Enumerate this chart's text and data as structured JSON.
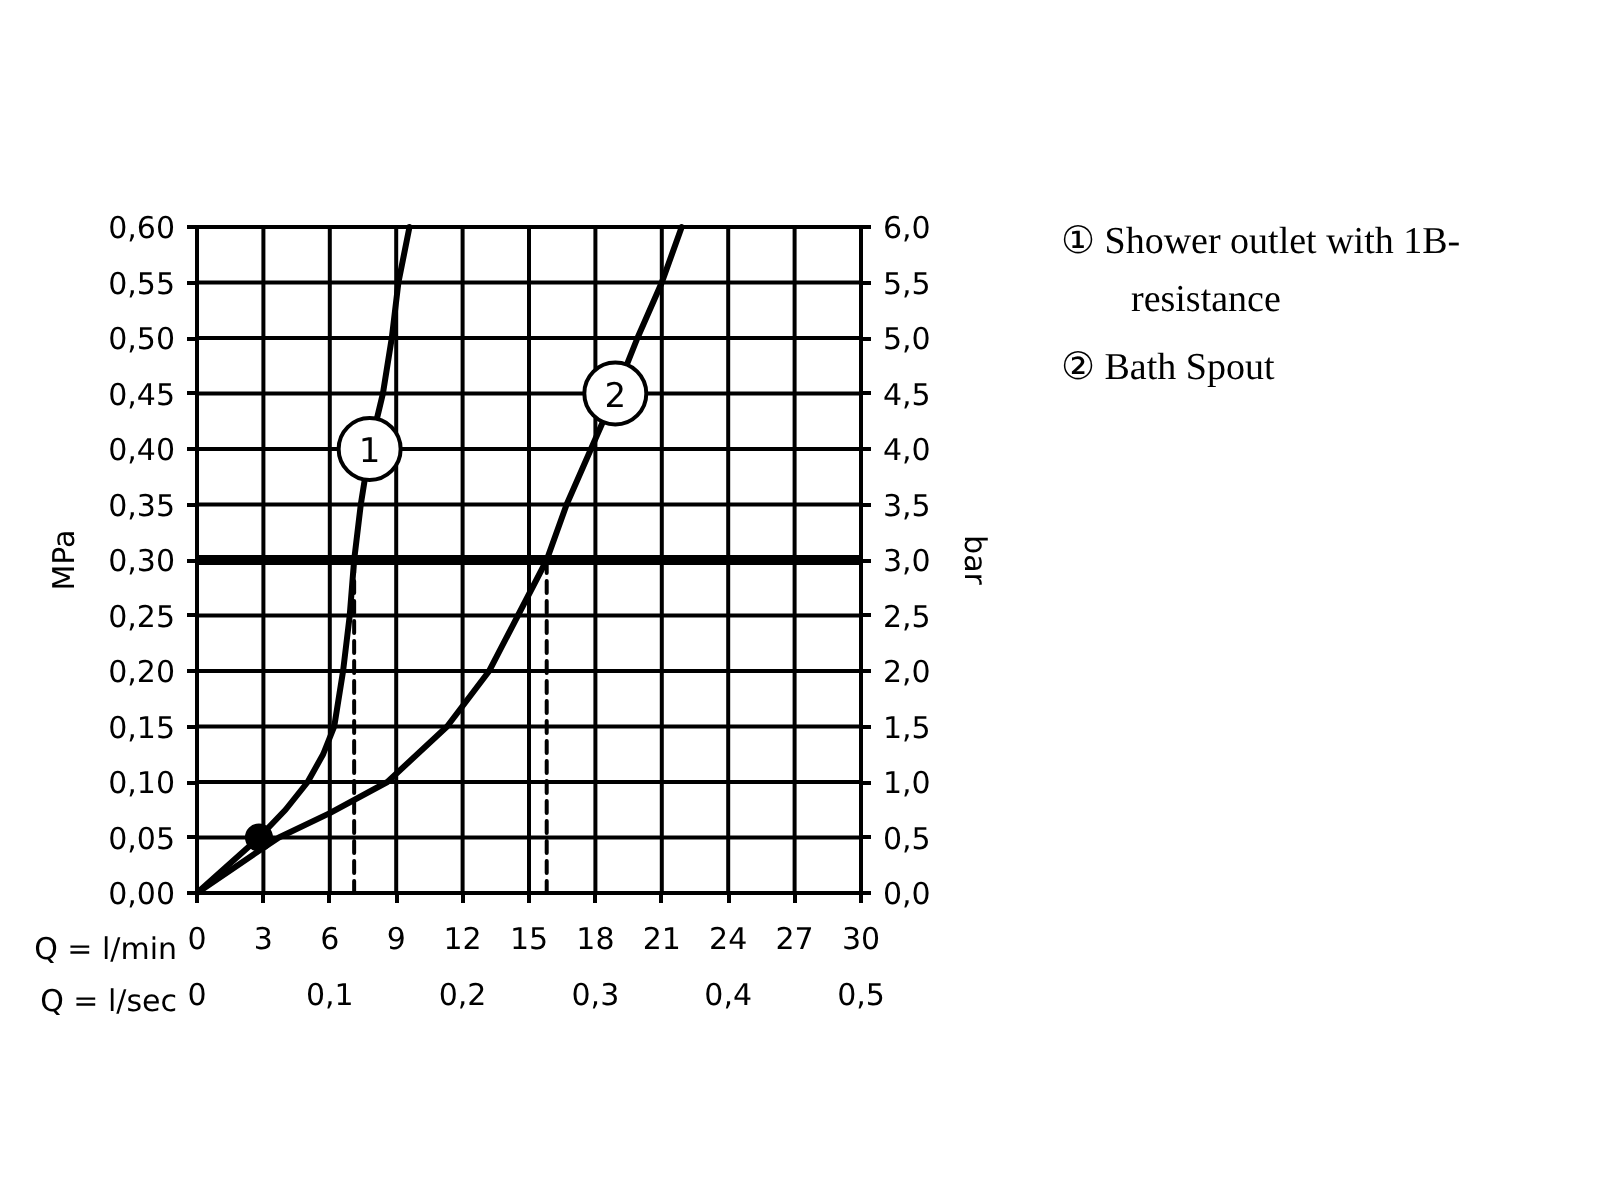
{
  "chart_data": {
    "type": "line",
    "xlabel": "Q = l/min",
    "x2label": "Q = l/sec",
    "ylabel": "MPa",
    "y2label": "bar",
    "xlim": [
      0,
      30
    ],
    "xticks": [
      0,
      3,
      6,
      9,
      12,
      15,
      18,
      21,
      24,
      27,
      30
    ],
    "x2lim": [
      0,
      0.5
    ],
    "x2ticks": [
      0,
      {
        "value": 0.1,
        "label": "0,1"
      },
      {
        "value": 0.2,
        "label": "0,2"
      },
      {
        "value": 0.3,
        "label": "0,3"
      },
      {
        "value": 0.4,
        "label": "0,4"
      },
      {
        "value": 0.5,
        "label": "0,5"
      }
    ],
    "ylim": [
      0,
      0.6
    ],
    "yticks": [
      {
        "value": 0,
        "label": "0,00"
      },
      {
        "value": 0.05,
        "label": "0,05"
      },
      {
        "value": 0.1,
        "label": "0,10"
      },
      {
        "value": 0.15,
        "label": "0,15"
      },
      {
        "value": 0.2,
        "label": "0,20"
      },
      {
        "value": 0.25,
        "label": "0,25"
      },
      {
        "value": 0.3,
        "label": "0,30"
      },
      {
        "value": 0.35,
        "label": "0,35"
      },
      {
        "value": 0.4,
        "label": "0,40"
      },
      {
        "value": 0.45,
        "label": "0,45"
      },
      {
        "value": 0.5,
        "label": "0,50"
      },
      {
        "value": 0.55,
        "label": "0,55"
      },
      {
        "value": 0.6,
        "label": "0,60"
      }
    ],
    "y2lim": [
      0,
      6
    ],
    "y2ticks": [
      {
        "value": 0,
        "label": "0,0"
      },
      {
        "value": 0.5,
        "label": "0,5"
      },
      {
        "value": 1,
        "label": "1,0"
      },
      {
        "value": 1.5,
        "label": "1,5"
      },
      {
        "value": 2,
        "label": "2,0"
      },
      {
        "value": 2.5,
        "label": "2,5"
      },
      {
        "value": 3,
        "label": "3,0"
      },
      {
        "value": 3.5,
        "label": "3,5"
      },
      {
        "value": 4,
        "label": "4,0"
      },
      {
        "value": 4.5,
        "label": "4,5"
      },
      {
        "value": 5,
        "label": "5,0"
      },
      {
        "value": 5.5,
        "label": "5,5"
      },
      {
        "value": 6,
        "label": "6,0"
      }
    ],
    "grid": true,
    "series": [
      {
        "name": "1",
        "color": "#000000",
        "x": [
          0,
          2.8,
          4.0,
          5.0,
          5.7,
          6.2,
          6.6,
          6.9,
          7.1,
          7.4,
          7.8,
          8.4,
          8.8,
          9.1,
          9.6
        ],
        "values": [
          0,
          0.05,
          0.075,
          0.1,
          0.125,
          0.15,
          0.2,
          0.25,
          0.3,
          0.35,
          0.4,
          0.45,
          0.5,
          0.55,
          0.6
        ]
      },
      {
        "name": "2",
        "color": "#000000",
        "x": [
          0,
          2.8,
          3.7,
          6.0,
          8.6,
          11.3,
          13.2,
          14.5,
          15.8,
          16.7,
          17.8,
          18.9,
          19.9,
          21.0,
          21.9
        ],
        "values": [
          0,
          0.038,
          0.05,
          0.072,
          0.1,
          0.15,
          0.2,
          0.25,
          0.3,
          0.35,
          0.4,
          0.45,
          0.5,
          0.55,
          0.6
        ]
      },
      {
        "type": "scatter",
        "color": "#000000",
        "marker": "circle",
        "x": [
          2.8
        ],
        "values": [
          0.05
        ]
      },
      {
        "color": "#000000",
        "line_style": "dashed",
        "x": [
          7.1,
          7.1
        ],
        "values": [
          0,
          0.3
        ]
      },
      {
        "color": "#000000",
        "line_style": "dashed",
        "x": [
          15.8,
          15.8
        ],
        "values": [
          0,
          0.3
        ]
      }
    ],
    "ref_lines": [
      {
        "axis": "y",
        "value": 0.3,
        "color": "#000000"
      }
    ],
    "annotations": [
      "① Shower outlet with 1B-resistance",
      "② Bath Spout"
    ]
  }
}
